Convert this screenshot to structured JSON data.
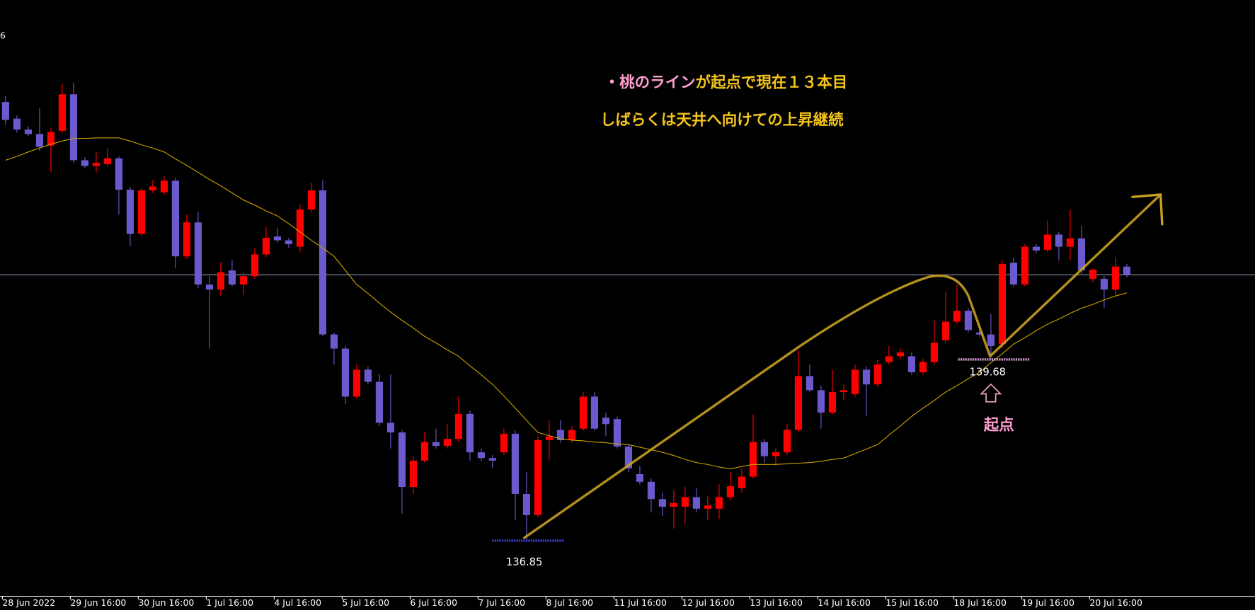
{
  "chart_data": {
    "type": "candlestick",
    "header_fragment": "6",
    "up_color": "#ff0000",
    "down_color": "#6a5acd",
    "ma_color": "#c8a000",
    "bid_line": 141.0,
    "bid_color": "#8a9bb5",
    "ylim": [
      136.02,
      145.29
    ],
    "categories": [
      "28 Jun 2022",
      null,
      null,
      null,
      null,
      null,
      "29 Jun 16:00",
      null,
      null,
      null,
      null,
      null,
      "30 Jun 16:00",
      null,
      null,
      null,
      null,
      null,
      "1 Jul 16:00",
      null,
      null,
      null,
      null,
      null,
      "4 Jul 16:00",
      null,
      null,
      null,
      null,
      null,
      "5 Jul 16:00",
      null,
      null,
      null,
      null,
      null,
      "6 Jul 16:00",
      null,
      null,
      null,
      null,
      null,
      "7 Jul 16:00",
      null,
      null,
      null,
      null,
      null,
      "8 Jul 16:00",
      null,
      null,
      null,
      null,
      null,
      "11 Jul 16:00",
      null,
      null,
      null,
      null,
      null,
      "12 Jul 16:00",
      null,
      null,
      null,
      null,
      null,
      "13 Jul 16:00",
      null,
      null,
      null,
      null,
      null,
      "14 Jul 16:00",
      null,
      null,
      null,
      null,
      null,
      "15 Jul 16:00",
      null,
      null,
      null,
      null,
      null,
      "18 Jul 16:00",
      null,
      null,
      null,
      null,
      null,
      "19 Jul 16:00",
      null,
      null,
      null,
      null,
      null,
      "20 Jul 16:00",
      null,
      null,
      null
    ],
    "ohlc": [
      [
        143.7,
        143.79,
        143.35,
        143.42
      ],
      [
        143.44,
        143.49,
        143.22,
        143.27
      ],
      [
        143.27,
        143.32,
        143.17,
        143.2
      ],
      [
        143.2,
        143.6,
        142.94,
        143.0
      ],
      [
        143.02,
        143.29,
        142.6,
        143.23
      ],
      [
        143.25,
        143.98,
        143.22,
        143.82
      ],
      [
        143.82,
        144.0,
        142.75,
        142.79
      ],
      [
        142.79,
        142.84,
        142.67,
        142.7
      ],
      [
        142.7,
        142.92,
        142.6,
        142.75
      ],
      [
        142.73,
        142.98,
        142.69,
        142.82
      ],
      [
        142.82,
        142.85,
        141.94,
        142.33
      ],
      [
        142.33,
        142.37,
        141.45,
        141.64
      ],
      [
        141.64,
        142.35,
        141.6,
        142.32
      ],
      [
        142.32,
        142.48,
        142.28,
        142.38
      ],
      [
        142.29,
        142.54,
        142.25,
        142.47
      ],
      [
        142.47,
        142.52,
        141.1,
        141.29
      ],
      [
        141.29,
        141.94,
        141.25,
        141.82
      ],
      [
        141.82,
        141.98,
        140.79,
        140.85
      ],
      [
        140.85,
        140.98,
        139.85,
        140.77
      ],
      [
        140.77,
        141.2,
        140.67,
        141.04
      ],
      [
        141.07,
        141.23,
        140.82,
        140.85
      ],
      [
        140.85,
        141.04,
        140.69,
        140.98
      ],
      [
        140.98,
        141.42,
        140.94,
        141.32
      ],
      [
        141.32,
        141.75,
        141.28,
        141.58
      ],
      [
        141.6,
        141.73,
        141.5,
        141.54
      ],
      [
        141.54,
        141.58,
        141.42,
        141.48
      ],
      [
        141.44,
        142.1,
        141.35,
        142.02
      ],
      [
        142.02,
        142.44,
        141.98,
        142.32
      ],
      [
        142.32,
        142.48,
        140.04,
        140.07
      ],
      [
        140.07,
        140.1,
        139.6,
        139.85
      ],
      [
        139.85,
        139.89,
        138.98,
        139.1
      ],
      [
        139.1,
        139.6,
        139.07,
        139.52
      ],
      [
        139.52,
        139.57,
        139.29,
        139.33
      ],
      [
        139.33,
        139.45,
        138.64,
        138.69
      ],
      [
        138.69,
        139.45,
        138.29,
        138.54
      ],
      [
        138.54,
        138.58,
        137.27,
        137.69
      ],
      [
        137.69,
        138.17,
        137.58,
        138.1
      ],
      [
        138.1,
        138.54,
        138.07,
        138.39
      ],
      [
        138.39,
        138.6,
        138.29,
        138.33
      ],
      [
        138.33,
        138.67,
        138.29,
        138.44
      ],
      [
        138.44,
        139.1,
        138.39,
        138.83
      ],
      [
        138.83,
        138.88,
        138.1,
        138.23
      ],
      [
        138.23,
        138.29,
        138.09,
        138.14
      ],
      [
        138.14,
        138.19,
        137.98,
        138.1
      ],
      [
        138.23,
        138.6,
        138.19,
        138.52
      ],
      [
        138.52,
        138.57,
        137.17,
        137.58
      ],
      [
        137.58,
        137.92,
        136.85,
        137.25
      ],
      [
        137.25,
        138.48,
        137.22,
        138.42
      ],
      [
        138.42,
        138.73,
        138.1,
        138.48
      ],
      [
        138.58,
        138.73,
        138.38,
        138.42
      ],
      [
        138.42,
        138.64,
        138.38,
        138.58
      ],
      [
        138.6,
        139.17,
        138.57,
        139.1
      ],
      [
        139.1,
        139.17,
        138.57,
        138.6
      ],
      [
        138.77,
        138.85,
        138.48,
        138.67
      ],
      [
        138.75,
        138.79,
        138.29,
        138.32
      ],
      [
        138.32,
        138.35,
        137.92,
        137.98
      ],
      [
        137.89,
        138.02,
        137.73,
        137.77
      ],
      [
        137.77,
        137.82,
        137.29,
        137.5
      ],
      [
        137.5,
        137.6,
        137.23,
        137.38
      ],
      [
        137.38,
        137.64,
        137.04,
        137.44
      ],
      [
        137.38,
        137.69,
        137.1,
        137.53
      ],
      [
        137.53,
        137.67,
        137.29,
        137.35
      ],
      [
        137.35,
        137.54,
        137.17,
        137.4
      ],
      [
        137.35,
        137.73,
        137.19,
        137.53
      ],
      [
        137.53,
        137.92,
        137.48,
        137.7
      ],
      [
        137.67,
        137.98,
        137.6,
        137.85
      ],
      [
        137.85,
        138.82,
        137.82,
        138.39
      ],
      [
        138.39,
        138.44,
        138.07,
        138.17
      ],
      [
        138.17,
        138.29,
        138.02,
        138.23
      ],
      [
        138.23,
        138.67,
        138.19,
        138.58
      ],
      [
        138.58,
        139.82,
        138.54,
        139.42
      ],
      [
        139.42,
        139.6,
        139.17,
        139.2
      ],
      [
        139.2,
        139.27,
        138.6,
        138.85
      ],
      [
        138.85,
        139.52,
        138.82,
        139.17
      ],
      [
        139.17,
        139.29,
        139.04,
        139.2
      ],
      [
        139.14,
        139.6,
        139.1,
        139.52
      ],
      [
        139.52,
        139.57,
        138.79,
        139.29
      ],
      [
        139.29,
        139.67,
        139.25,
        139.6
      ],
      [
        139.64,
        139.89,
        139.6,
        139.73
      ],
      [
        139.73,
        139.85,
        139.69,
        139.79
      ],
      [
        139.73,
        139.79,
        139.44,
        139.48
      ],
      [
        139.48,
        139.69,
        139.44,
        139.64
      ],
      [
        139.64,
        140.29,
        139.6,
        139.94
      ],
      [
        139.98,
        140.73,
        139.94,
        140.27
      ],
      [
        140.27,
        140.85,
        140.23,
        140.44
      ],
      [
        140.44,
        140.48,
        140.1,
        140.14
      ],
      [
        140.1,
        140.23,
        140.04,
        140.07
      ],
      [
        140.07,
        140.39,
        139.68,
        139.89
      ],
      [
        139.92,
        141.23,
        139.85,
        141.17
      ],
      [
        141.19,
        141.27,
        140.82,
        140.85
      ],
      [
        140.85,
        141.48,
        140.82,
        141.44
      ],
      [
        141.44,
        141.48,
        141.34,
        141.38
      ],
      [
        141.39,
        141.85,
        141.35,
        141.63
      ],
      [
        141.63,
        141.67,
        141.23,
        141.44
      ],
      [
        141.44,
        142.02,
        141.23,
        141.57
      ],
      [
        141.57,
        141.77,
        141.02,
        141.07
      ],
      [
        140.94,
        141.1,
        140.89,
        141.08
      ],
      [
        140.94,
        140.98,
        140.48,
        140.77
      ],
      [
        140.77,
        141.27,
        140.67,
        141.13
      ],
      [
        141.13,
        141.17,
        140.96,
        141.0
      ]
    ],
    "ma_values": [
      142.79,
      142.85,
      142.92,
      142.98,
      143.04,
      143.09,
      143.13,
      143.13,
      143.14,
      143.14,
      143.14,
      143.09,
      143.03,
      142.98,
      142.92,
      142.81,
      142.71,
      142.6,
      142.49,
      142.39,
      142.28,
      142.17,
      142.09,
      142.0,
      141.92,
      141.8,
      141.67,
      141.54,
      141.42,
      141.29,
      141.07,
      140.85,
      140.71,
      140.56,
      140.42,
      140.29,
      140.17,
      140.04,
      139.94,
      139.83,
      139.73,
      139.58,
      139.44,
      139.29,
      139.11,
      138.92,
      138.73,
      138.54,
      138.49,
      138.44,
      138.42,
      138.41,
      138.39,
      138.38,
      138.36,
      138.35,
      138.31,
      138.27,
      138.23,
      138.18,
      138.12,
      138.07,
      138.04,
      138.0,
      137.97,
      138.01,
      138.04,
      138.04,
      138.04,
      138.05,
      138.06,
      138.07,
      138.09,
      138.12,
      138.14,
      138.21,
      138.28,
      138.35,
      138.5,
      138.64,
      138.79,
      138.92,
      139.04,
      139.17,
      139.27,
      139.38,
      139.48,
      139.63,
      139.77,
      139.92,
      140.02,
      140.13,
      140.23,
      140.31,
      140.4,
      140.48,
      140.54,
      140.61,
      140.67,
      140.72
    ],
    "levels": [
      {
        "value": 136.85,
        "color": "#3c3cb4"
      },
      {
        "value": 139.68,
        "color": "#c896c8"
      }
    ],
    "annotation_line1": [
      "・桃のライン",
      "が起点で現在１３本目"
    ],
    "annotation_line2": "しばらくは天井へ向けての上昇継続",
    "origin_label": "起点"
  }
}
